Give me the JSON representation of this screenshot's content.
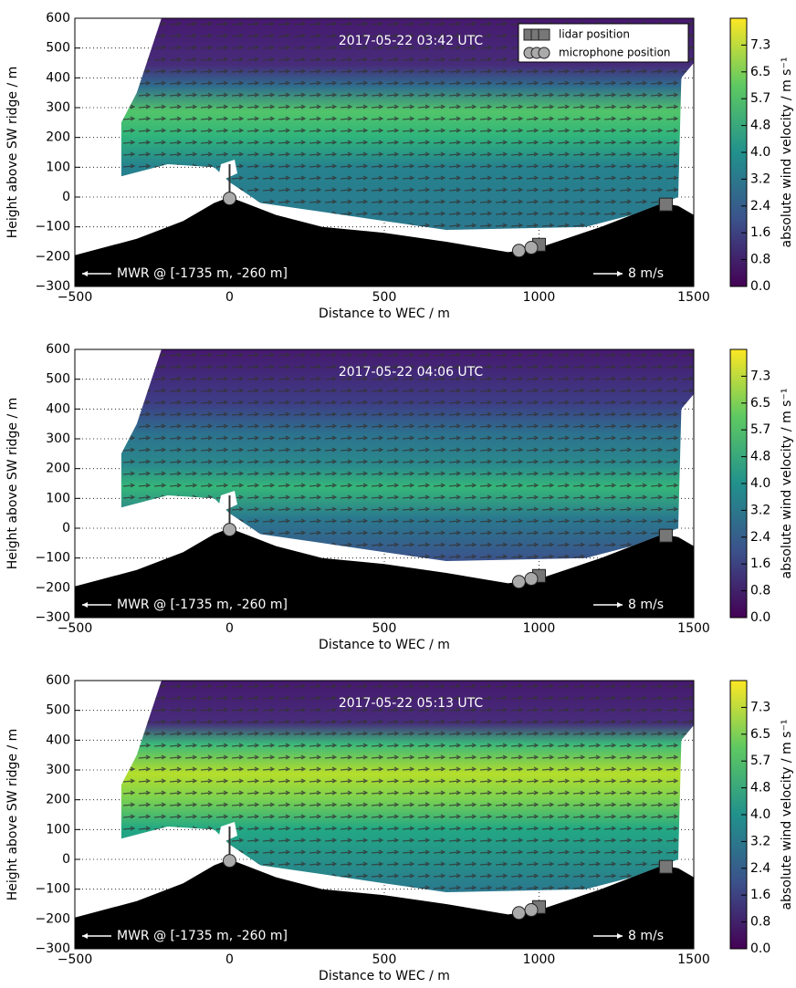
{
  "chart_data": [
    {
      "type": "quiver",
      "title": "2017-05-22 03:42 UTC",
      "xlabel": "Distance to WEC / m",
      "ylabel": "Height above SW ridge / m",
      "xlim": [
        -500,
        1500
      ],
      "xticks": [
        {
          "value": -500,
          "label": "−500"
        },
        0,
        500,
        1000,
        1500
      ],
      "ylim": [
        -300,
        600
      ],
      "yticks": [
        {
          "value": -300,
          "label": "−300"
        },
        {
          "value": -200,
          "label": "−200"
        },
        {
          "value": -100,
          "label": "−100"
        },
        0,
        100,
        200,
        300,
        400,
        500,
        600
      ],
      "grid": true,
      "colorbar": {
        "label": "absolute wind velocity / m s⁻¹",
        "lim": [
          0,
          8.1
        ],
        "ticks": [
          {
            "value": 0,
            "label": "0.0"
          },
          {
            "value": 0.81,
            "label": "0.8"
          },
          {
            "value": 1.62,
            "label": "1.6"
          },
          {
            "value": 2.43,
            "label": "2.4"
          },
          {
            "value": 3.24,
            "label": "3.2"
          },
          {
            "value": 4.05,
            "label": "4.0"
          },
          {
            "value": 4.86,
            "label": "4.8"
          },
          {
            "value": 5.67,
            "label": "5.7"
          },
          {
            "value": 6.48,
            "label": "6.5"
          },
          {
            "value": 7.29,
            "label": "7.3"
          }
        ]
      },
      "series": [
        {
          "name": "lidar position",
          "color": "#777777",
          "x": [
            1000,
            1410
          ],
          "y": [
            -160,
            -25
          ]
        },
        {
          "name": "microphone position",
          "color": "#aaaaaa",
          "x": [
            0,
            935,
            975
          ],
          "y": [
            -5,
            -180,
            -170
          ]
        }
      ],
      "legend": "upper right",
      "annotations": [
        "MWR @ [-1735 m, -260 m]",
        "8 m/s"
      ]
    },
    {
      "type": "quiver",
      "title": "2017-05-22 04:06 UTC",
      "xlabel": "Distance to WEC / m",
      "ylabel": "Height above SW ridge / m",
      "xlim": [
        -500,
        1500
      ],
      "xticks": [
        {
          "value": -500,
          "label": "−500"
        },
        0,
        500,
        1000,
        1500
      ],
      "ylim": [
        -300,
        600
      ],
      "yticks": [
        {
          "value": -300,
          "label": "−300"
        },
        {
          "value": -200,
          "label": "−200"
        },
        {
          "value": -100,
          "label": "−100"
        },
        0,
        100,
        200,
        300,
        400,
        500,
        600
      ],
      "grid": true,
      "colorbar": {
        "label": "absolute wind velocity / m s⁻¹",
        "lim": [
          0,
          8.1
        ],
        "ticks": [
          {
            "value": 0,
            "label": "0.0"
          },
          {
            "value": 0.81,
            "label": "0.8"
          },
          {
            "value": 1.62,
            "label": "1.6"
          },
          {
            "value": 2.43,
            "label": "2.4"
          },
          {
            "value": 3.24,
            "label": "3.2"
          },
          {
            "value": 4.05,
            "label": "4.0"
          },
          {
            "value": 4.86,
            "label": "4.8"
          },
          {
            "value": 5.67,
            "label": "5.7"
          },
          {
            "value": 6.48,
            "label": "6.5"
          },
          {
            "value": 7.29,
            "label": "7.3"
          }
        ]
      },
      "series": [
        {
          "color": "#777777",
          "x": [
            1000,
            1410
          ],
          "y": [
            -160,
            -25
          ]
        },
        {
          "color": "#aaaaaa",
          "x": [
            0,
            935,
            975
          ],
          "y": [
            -5,
            -180,
            -170
          ]
        }
      ],
      "annotations": [
        "MWR @ [-1735 m, -260 m]",
        "8 m/s"
      ]
    },
    {
      "type": "quiver",
      "title": "2017-05-22 05:13 UTC",
      "xlabel": "Distance to WEC / m",
      "ylabel": "Height above SW ridge / m",
      "xlim": [
        -500,
        1500
      ],
      "xticks": [
        {
          "value": -500,
          "label": "−500"
        },
        0,
        500,
        1000,
        1500
      ],
      "ylim": [
        -300,
        600
      ],
      "yticks": [
        {
          "value": -300,
          "label": "−300"
        },
        {
          "value": -200,
          "label": "−200"
        },
        {
          "value": -100,
          "label": "−100"
        },
        0,
        100,
        200,
        300,
        400,
        500,
        600
      ],
      "grid": true,
      "colorbar": {
        "label": "absolute wind velocity / m s⁻¹",
        "lim": [
          0,
          8.1
        ],
        "ticks": [
          {
            "value": 0,
            "label": "0.0"
          },
          {
            "value": 0.81,
            "label": "0.8"
          },
          {
            "value": 1.62,
            "label": "1.6"
          },
          {
            "value": 2.43,
            "label": "2.4"
          },
          {
            "value": 3.24,
            "label": "3.2"
          },
          {
            "value": 4.05,
            "label": "4.0"
          },
          {
            "value": 4.86,
            "label": "4.8"
          },
          {
            "value": 5.67,
            "label": "5.7"
          },
          {
            "value": 6.48,
            "label": "6.5"
          },
          {
            "value": 7.29,
            "label": "7.3"
          }
        ]
      },
      "series": [
        {
          "color": "#777777",
          "x": [
            1000,
            1410
          ],
          "y": [
            -160,
            -25
          ]
        },
        {
          "color": "#aaaaaa",
          "x": [
            0,
            935,
            975
          ],
          "y": [
            -5,
            -180,
            -170
          ]
        }
      ],
      "annotations": [
        "MWR @ [-1735 m, -260 m]",
        "8 m/s"
      ]
    }
  ]
}
